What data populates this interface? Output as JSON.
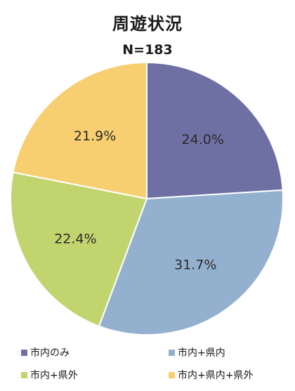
{
  "chart_data": {
    "type": "pie",
    "title": "周遊状況",
    "subtitle": "N=183",
    "slices": [
      {
        "label": "市内のみ",
        "value": 24.0,
        "display": "24.0%",
        "color": "#6E70A4"
      },
      {
        "label": "市内+県内",
        "value": 31.7,
        "display": "31.7%",
        "color": "#93B0CF"
      },
      {
        "label": "市内+県外",
        "value": 22.4,
        "display": "22.4%",
        "color": "#C2D46E"
      },
      {
        "label": "市内+県内+県外",
        "value": 21.9,
        "display": "21.9%",
        "color": "#F7CE70"
      }
    ],
    "start_angle": "12 o'clock",
    "direction": "clockwise",
    "legend_position": "bottom"
  }
}
